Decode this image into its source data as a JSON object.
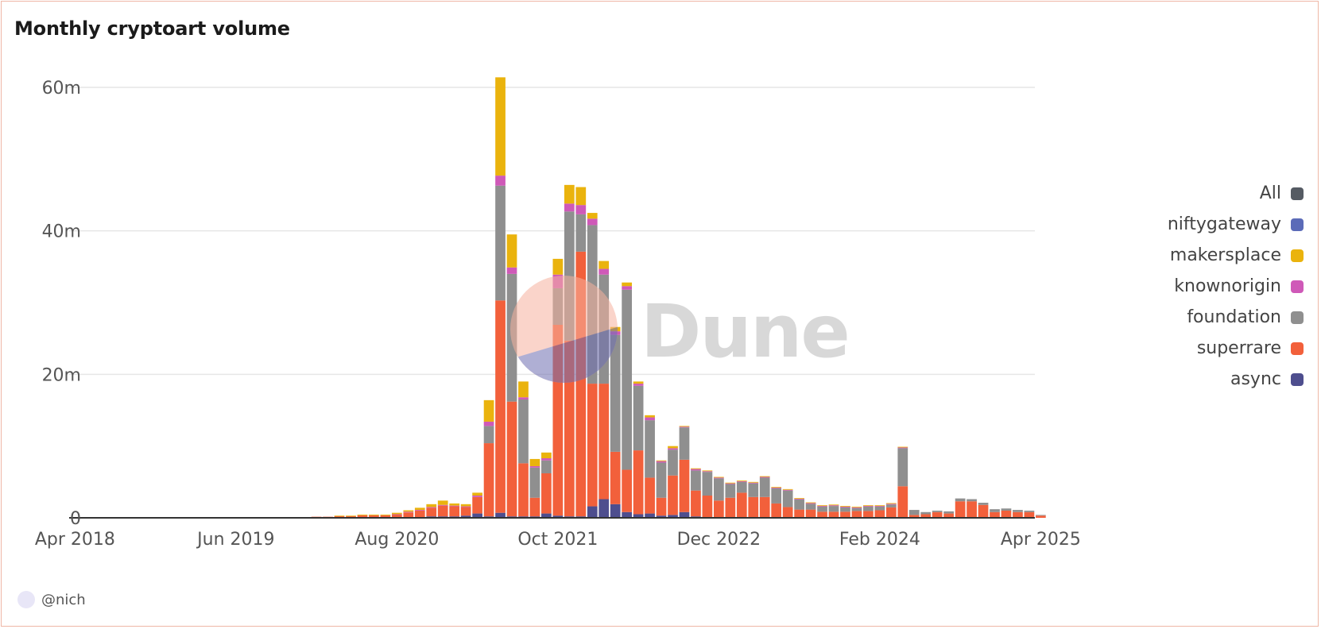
{
  "title": "Monthly cryptoart volume",
  "author": "@nich",
  "watermark": "Dune",
  "legend": [
    {
      "name": "All",
      "color": "#555b63"
    },
    {
      "name": "niftygateway",
      "color": "#5b6bb8"
    },
    {
      "name": "makersplace",
      "color": "#eab30d"
    },
    {
      "name": "knownorigin",
      "color": "#cf59b8"
    },
    {
      "name": "foundation",
      "color": "#8f8f8f"
    },
    {
      "name": "superrare",
      "color": "#f2603b"
    },
    {
      "name": "async",
      "color": "#4e4e8e"
    }
  ],
  "chart_data": {
    "type": "bar",
    "stacked": true,
    "title": "Monthly cryptoart volume",
    "ylim": [
      0,
      62
    ],
    "yticks": [
      "0",
      "20m",
      "40m",
      "60m"
    ],
    "ytick_values": [
      0,
      20,
      40,
      60
    ],
    "xticks": [
      "Apr 2018",
      "Jun 2019",
      "Aug 2020",
      "Oct 2021",
      "Dec 2022",
      "Feb 2024",
      "Apr 2025"
    ],
    "xtick_months": [
      "2018-04",
      "2019-06",
      "2020-08",
      "2021-10",
      "2022-12",
      "2024-02",
      "2025-04"
    ],
    "months": [
      "2018-04",
      "2018-05",
      "2018-06",
      "2018-07",
      "2018-08",
      "2018-09",
      "2018-10",
      "2018-11",
      "2018-12",
      "2019-01",
      "2019-02",
      "2019-03",
      "2019-04",
      "2019-05",
      "2019-06",
      "2019-07",
      "2019-08",
      "2019-09",
      "2019-10",
      "2019-11",
      "2019-12",
      "2020-01",
      "2020-02",
      "2020-03",
      "2020-04",
      "2020-05",
      "2020-06",
      "2020-07",
      "2020-08",
      "2020-09",
      "2020-10",
      "2020-11",
      "2020-12",
      "2021-01",
      "2021-02",
      "2021-03",
      "2021-04",
      "2021-05",
      "2021-06",
      "2021-07",
      "2021-08",
      "2021-09",
      "2021-10",
      "2021-11",
      "2021-12",
      "2022-01",
      "2022-02",
      "2022-03",
      "2022-04",
      "2022-05",
      "2022-06",
      "2022-07",
      "2022-08",
      "2022-09",
      "2022-10",
      "2022-11",
      "2022-12",
      "2023-01",
      "2023-02",
      "2023-03",
      "2023-04",
      "2023-05",
      "2023-06",
      "2023-07",
      "2023-08",
      "2023-09",
      "2023-10",
      "2023-11",
      "2023-12",
      "2024-01",
      "2024-02",
      "2024-03",
      "2024-04",
      "2024-05",
      "2024-06",
      "2024-07",
      "2024-08",
      "2024-09",
      "2024-10",
      "2024-11",
      "2024-12",
      "2025-01",
      "2025-02",
      "2025-03",
      "2025-04"
    ],
    "series": [
      {
        "name": "async",
        "color": "#4e4e8e",
        "values": [
          0.05,
          0.05,
          0.05,
          0.05,
          0.05,
          0.05,
          0.05,
          0.05,
          0.05,
          0.05,
          0.05,
          0.05,
          0.05,
          0.05,
          0.05,
          0.05,
          0.05,
          0.05,
          0.05,
          0.05,
          0.05,
          0.05,
          0.05,
          0.05,
          0.05,
          0.05,
          0.05,
          0.05,
          0.05,
          0.05,
          0.1,
          0.2,
          0.2,
          0.2,
          0.3,
          0.6,
          0.2,
          0.7,
          0.2,
          0.2,
          0.2,
          0.6,
          0.3,
          0.2,
          0.2,
          1.6,
          2.6,
          1.9,
          0.8,
          0.5,
          0.6,
          0.3,
          0.4,
          0.8,
          0.2,
          0.1,
          0.1,
          0.1,
          0.1,
          0.1,
          0.1,
          0.1,
          0.1,
          0.05,
          0.05,
          0.05,
          0.05,
          0.05,
          0.05,
          0.05,
          0.05,
          0.05,
          0,
          0,
          0,
          0,
          0,
          0,
          0,
          0,
          0,
          0,
          0,
          0,
          0
        ]
      },
      {
        "name": "superrare",
        "color": "#f2603b",
        "values": [
          0.05,
          0.05,
          0.05,
          0.05,
          0.05,
          0.05,
          0.05,
          0.05,
          0.05,
          0.05,
          0.05,
          0.05,
          0.05,
          0.05,
          0.05,
          0.05,
          0.05,
          0.05,
          0.05,
          0.05,
          0.05,
          0.1,
          0.1,
          0.2,
          0.2,
          0.3,
          0.3,
          0.3,
          0.4,
          0.7,
          0.9,
          1.2,
          1.5,
          1.4,
          1.2,
          2.3,
          10.2,
          29.6,
          16.0,
          7.4,
          2.6,
          5.6,
          26.6,
          24.5,
          36.9,
          17.1,
          16.1,
          7.3,
          5.9,
          8.9,
          5.0,
          2.5,
          5.5,
          7.3,
          3.6,
          3.0,
          2.3,
          2.7,
          3.4,
          2.8,
          2.8,
          1.9,
          1.4,
          1.1,
          1.1,
          0.8,
          0.8,
          0.8,
          0.9,
          0.9,
          1.0,
          1.4,
          4.4,
          0.4,
          0.5,
          0.8,
          0.6,
          2.3,
          2.3,
          1.8,
          0.8,
          1.0,
          0.8,
          0.8,
          0.3
        ]
      },
      {
        "name": "foundation",
        "color": "#8f8f8f",
        "values": [
          0,
          0,
          0,
          0,
          0,
          0,
          0,
          0,
          0,
          0,
          0,
          0,
          0,
          0,
          0,
          0,
          0,
          0,
          0,
          0,
          0,
          0,
          0,
          0,
          0,
          0,
          0,
          0,
          0,
          0,
          0,
          0,
          0,
          0,
          0,
          0,
          2.4,
          16.0,
          17.8,
          8.9,
          4.2,
          1.8,
          5.1,
          18.0,
          5.2,
          22.1,
          15.2,
          16.3,
          25.1,
          9.0,
          8.0,
          4.9,
          3.6,
          4.5,
          2.8,
          3.3,
          3.1,
          1.9,
          1.5,
          1.9,
          2.7,
          2.1,
          2.3,
          1.4,
          0.8,
          0.7,
          0.8,
          0.6,
          0.4,
          0.6,
          0.5,
          0.4,
          5.3,
          0.7,
          0.3,
          0.2,
          0.3,
          0.4,
          0.3,
          0.3,
          0.4,
          0.3,
          0.3,
          0.2,
          0.1
        ]
      },
      {
        "name": "knownorigin",
        "color": "#cf59b8",
        "values": [
          0,
          0,
          0,
          0,
          0,
          0,
          0,
          0,
          0,
          0,
          0,
          0,
          0,
          0,
          0,
          0,
          0,
          0,
          0,
          0,
          0,
          0,
          0,
          0,
          0,
          0,
          0,
          0,
          0.05,
          0.1,
          0.1,
          0.1,
          0.1,
          0.1,
          0.1,
          0.2,
          0.6,
          1.4,
          0.9,
          0.3,
          0.2,
          0.3,
          1.9,
          1.1,
          1.3,
          0.9,
          0.8,
          0.5,
          0.5,
          0.3,
          0.4,
          0.2,
          0.2,
          0.1,
          0.2,
          0.1,
          0.1,
          0.1,
          0.1,
          0.1,
          0.1,
          0.1,
          0.1,
          0.1,
          0.1,
          0.1,
          0.1,
          0.1,
          0.1,
          0.1,
          0.1,
          0.1,
          0.1,
          0,
          0,
          0,
          0,
          0,
          0,
          0,
          0,
          0,
          0,
          0,
          0
        ]
      },
      {
        "name": "makersplace",
        "color": "#eab30d",
        "values": [
          0,
          0,
          0,
          0,
          0,
          0,
          0,
          0,
          0,
          0,
          0,
          0,
          0,
          0,
          0,
          0,
          0,
          0,
          0,
          0,
          0,
          0,
          0,
          0.05,
          0.05,
          0.1,
          0.1,
          0.1,
          0.2,
          0.2,
          0.3,
          0.4,
          0.6,
          0.3,
          0.3,
          0.4,
          3.0,
          13.7,
          4.6,
          2.2,
          1.0,
          0.8,
          2.2,
          2.6,
          2.5,
          0.8,
          1.1,
          0.6,
          0.5,
          0.3,
          0.3,
          0.1,
          0.3,
          0.1,
          0.1,
          0.1,
          0.1,
          0.1,
          0.1,
          0.1,
          0.1,
          0.1,
          0.1,
          0.1,
          0.1,
          0.1,
          0.1,
          0.1,
          0.1,
          0.1,
          0.1,
          0.1,
          0.1,
          0,
          0,
          0,
          0,
          0,
          0,
          0,
          0,
          0,
          0,
          0,
          0
        ]
      },
      {
        "name": "niftygateway",
        "color": "#5b6bb8",
        "values": [
          0,
          0,
          0,
          0,
          0,
          0,
          0,
          0,
          0,
          0,
          0,
          0,
          0,
          0,
          0,
          0,
          0,
          0,
          0,
          0,
          0,
          0,
          0,
          0,
          0,
          0,
          0,
          0,
          0,
          0,
          0,
          0,
          0,
          0,
          0,
          0,
          0,
          0,
          0,
          0,
          0,
          0,
          0,
          0,
          0,
          0,
          0,
          0,
          0,
          0,
          0,
          0,
          0,
          0,
          0,
          0,
          0,
          0,
          0,
          0,
          0,
          0,
          0,
          0,
          0,
          0,
          0,
          0,
          0,
          0,
          0,
          0,
          0,
          0,
          0,
          0,
          0,
          0,
          0,
          0,
          0,
          0,
          0,
          0,
          0
        ]
      }
    ]
  }
}
